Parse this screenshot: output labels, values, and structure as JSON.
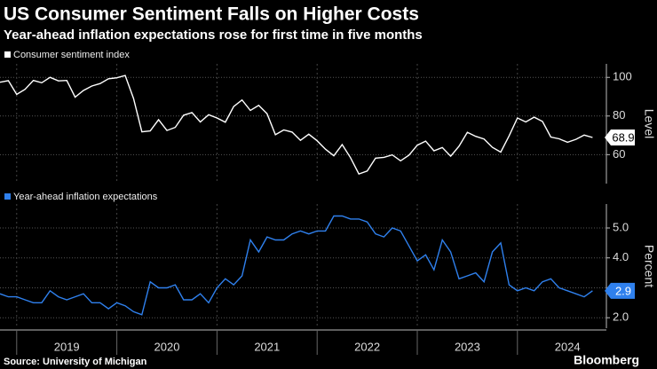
{
  "title": "US Consumer Sentiment Falls on Higher Costs",
  "subtitle": "Year-ahead inflation expectations rose for first time in five months",
  "source": "Source: University of Michigan",
  "brand": "Bloomberg",
  "xticks": [
    2019,
    2020,
    2021,
    2022,
    2023,
    2024
  ],
  "chart_data": [
    {
      "type": "line",
      "y_label": "Level",
      "ylim": [
        45,
        107
      ],
      "yticks": [
        60,
        80,
        100
      ],
      "grid": true,
      "x": [
        "2018-11",
        "2018-12",
        "2019-01",
        "2019-02",
        "2019-03",
        "2019-04",
        "2019-05",
        "2019-06",
        "2019-07",
        "2019-08",
        "2019-09",
        "2019-10",
        "2019-11",
        "2019-12",
        "2020-01",
        "2020-02",
        "2020-03",
        "2020-04",
        "2020-05",
        "2020-06",
        "2020-07",
        "2020-08",
        "2020-09",
        "2020-10",
        "2020-11",
        "2020-12",
        "2021-01",
        "2021-02",
        "2021-03",
        "2021-04",
        "2021-05",
        "2021-06",
        "2021-07",
        "2021-08",
        "2021-09",
        "2021-10",
        "2021-11",
        "2021-12",
        "2022-01",
        "2022-02",
        "2022-03",
        "2022-04",
        "2022-05",
        "2022-06",
        "2022-07",
        "2022-08",
        "2022-09",
        "2022-10",
        "2022-11",
        "2022-12",
        "2023-01",
        "2023-02",
        "2023-03",
        "2023-04",
        "2023-05",
        "2023-06",
        "2023-07",
        "2023-08",
        "2023-09",
        "2023-10",
        "2023-11",
        "2023-12",
        "2024-01",
        "2024-02",
        "2024-03",
        "2024-04",
        "2024-05",
        "2024-06",
        "2024-07",
        "2024-08",
        "2024-09",
        "2024-10"
      ],
      "series": [
        {
          "name": "Consumer sentiment index",
          "color": "#ffffff",
          "values": [
            97.5,
            98.3,
            91.2,
            93.8,
            98.4,
            97.2,
            100.0,
            98.2,
            98.4,
            89.8,
            93.2,
            95.5,
            96.8,
            99.3,
            99.8,
            101.0,
            89.1,
            71.8,
            72.3,
            78.1,
            72.5,
            74.1,
            80.4,
            81.8,
            76.9,
            80.7,
            79.0,
            76.8,
            84.9,
            88.3,
            82.9,
            85.5,
            81.2,
            70.3,
            72.8,
            71.7,
            67.4,
            70.6,
            67.2,
            62.8,
            59.4,
            65.2,
            58.4,
            50.0,
            51.5,
            58.2,
            58.6,
            59.9,
            56.8,
            59.7,
            64.9,
            67.0,
            62.0,
            63.7,
            59.2,
            64.4,
            71.6,
            69.5,
            68.1,
            63.8,
            61.3,
            69.7,
            79.0,
            76.9,
            79.4,
            77.2,
            69.1,
            68.2,
            66.4,
            67.9,
            70.1,
            68.9
          ]
        }
      ]
    },
    {
      "type": "line",
      "y_label": "Percent",
      "ylim": [
        1.65,
        5.8
      ],
      "yticks": [
        {
          "value": 2,
          "label": "2.0"
        },
        {
          "value": 3,
          "label": "3.0"
        },
        {
          "value": 4,
          "label": "4.0"
        },
        {
          "value": 5,
          "label": "5.0"
        }
      ],
      "grid": true,
      "x": [
        "2018-11",
        "2018-12",
        "2019-01",
        "2019-02",
        "2019-03",
        "2019-04",
        "2019-05",
        "2019-06",
        "2019-07",
        "2019-08",
        "2019-09",
        "2019-10",
        "2019-11",
        "2019-12",
        "2020-01",
        "2020-02",
        "2020-03",
        "2020-04",
        "2020-05",
        "2020-06",
        "2020-07",
        "2020-08",
        "2020-09",
        "2020-10",
        "2020-11",
        "2020-12",
        "2021-01",
        "2021-02",
        "2021-03",
        "2021-04",
        "2021-05",
        "2021-06",
        "2021-07",
        "2021-08",
        "2021-09",
        "2021-10",
        "2021-11",
        "2021-12",
        "2022-01",
        "2022-02",
        "2022-03",
        "2022-04",
        "2022-05",
        "2022-06",
        "2022-07",
        "2022-08",
        "2022-09",
        "2022-10",
        "2022-11",
        "2022-12",
        "2023-01",
        "2023-02",
        "2023-03",
        "2023-04",
        "2023-05",
        "2023-06",
        "2023-07",
        "2023-08",
        "2023-09",
        "2023-10",
        "2023-11",
        "2023-12",
        "2024-01",
        "2024-02",
        "2024-03",
        "2024-04",
        "2024-05",
        "2024-06",
        "2024-07",
        "2024-08",
        "2024-09",
        "2024-10"
      ],
      "series": [
        {
          "name": "Year-ahead inflation expectations",
          "color": "#2f80ed",
          "values": [
            2.8,
            2.7,
            2.7,
            2.6,
            2.5,
            2.5,
            2.9,
            2.7,
            2.6,
            2.7,
            2.8,
            2.5,
            2.5,
            2.3,
            2.5,
            2.4,
            2.2,
            2.1,
            3.2,
            3.0,
            3.0,
            3.1,
            2.6,
            2.6,
            2.8,
            2.5,
            3.0,
            3.3,
            3.1,
            3.4,
            4.6,
            4.2,
            4.7,
            4.6,
            4.6,
            4.8,
            4.9,
            4.8,
            4.9,
            4.9,
            5.4,
            5.4,
            5.3,
            5.3,
            5.2,
            4.8,
            4.7,
            5.0,
            4.9,
            4.4,
            3.9,
            4.1,
            3.6,
            4.6,
            4.2,
            3.3,
            3.4,
            3.5,
            3.2,
            4.2,
            4.5,
            3.1,
            2.9,
            3.0,
            2.9,
            3.2,
            3.3,
            3.0,
            2.9,
            2.8,
            2.7,
            2.9
          ]
        }
      ]
    }
  ]
}
